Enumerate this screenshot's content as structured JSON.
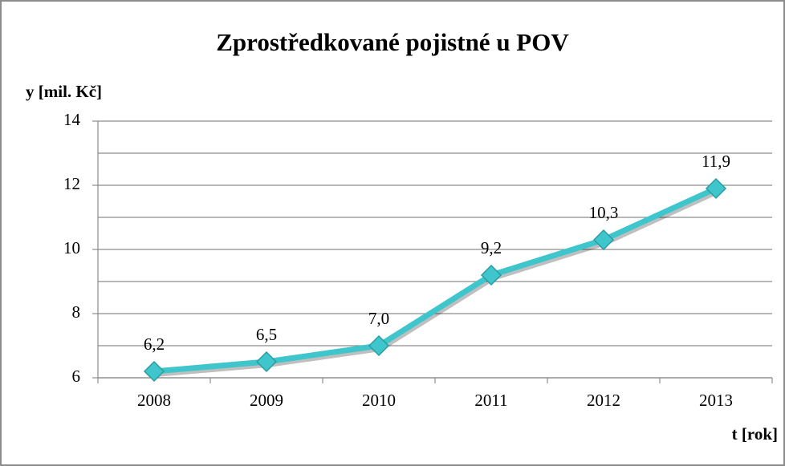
{
  "chart_data": {
    "type": "line",
    "title": "Zprostředkované pojistné u POV",
    "y_label": "y [mil. Kč]",
    "x_label": "t [rok]",
    "categories": [
      "2008",
      "2009",
      "2010",
      "2011",
      "2012",
      "2013"
    ],
    "values": [
      6.2,
      6.5,
      7.0,
      9.2,
      10.3,
      11.9
    ],
    "value_labels": [
      "6,2",
      "6,5",
      "7,0",
      "9,2",
      "10,3",
      "11,9"
    ],
    "color": "#3ec6cc",
    "ylim": [
      6,
      14
    ],
    "yticks": [
      6,
      8,
      10,
      12,
      14
    ],
    "y_minor_ticks": [
      7,
      9,
      11,
      13
    ],
    "grid": true
  }
}
